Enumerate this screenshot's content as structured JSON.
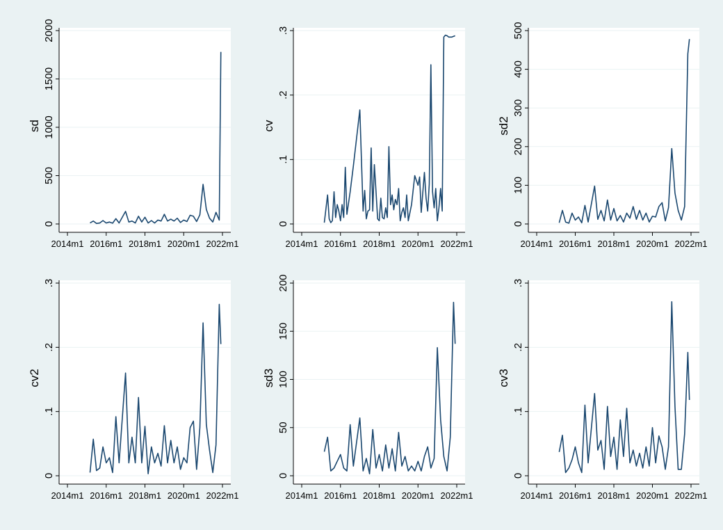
{
  "chart_data": [
    {
      "type": "line",
      "ylabel": "sd",
      "xlabel": "",
      "x_ticks": [
        "2014m1",
        "2016m1",
        "2018m1",
        "2020m1",
        "2022m1"
      ],
      "y_ticks": [
        "0",
        "500",
        "1000",
        "1500",
        "2000"
      ],
      "ylim": [
        0,
        2000
      ],
      "xlim": [
        "2014m1",
        "2022m1"
      ],
      "line_color": "#1a476f",
      "x": [
        "2015m3",
        "2015m5",
        "2015m7",
        "2015m9",
        "2015m11",
        "2016m1",
        "2016m3",
        "2016m5",
        "2016m7",
        "2016m9",
        "2017m1",
        "2017m3",
        "2017m5",
        "2017m7",
        "2017m9",
        "2017m11",
        "2018m1",
        "2018m3",
        "2018m5",
        "2018m7",
        "2018m9",
        "2018m11",
        "2019m1",
        "2019m3",
        "2019m5",
        "2019m7",
        "2019m9",
        "2019m11",
        "2020m1",
        "2020m3",
        "2020m5",
        "2020m7",
        "2020m9",
        "2020m11",
        "2021m1",
        "2021m3",
        "2021m5",
        "2021m7",
        "2021m9",
        "2021m11",
        "2021m12"
      ],
      "values": [
        10,
        30,
        5,
        10,
        35,
        10,
        20,
        8,
        55,
        10,
        130,
        20,
        30,
        10,
        80,
        20,
        70,
        10,
        35,
        10,
        40,
        30,
        100,
        30,
        50,
        30,
        60,
        15,
        40,
        25,
        90,
        80,
        25,
        95,
        410,
        150,
        60,
        20,
        120,
        40,
        1780
      ]
    },
    {
      "type": "line",
      "ylabel": "cv",
      "xlabel": "",
      "x_ticks": [
        "2014m1",
        "2016m1",
        "2018m1",
        "2020m1",
        "2022m1"
      ],
      "y_ticks": [
        "0",
        ".1",
        ".2",
        ".3"
      ],
      "ylim": [
        0,
        0.3
      ],
      "xlim": [
        "2014m1",
        "2022m1"
      ],
      "line_color": "#1a476f",
      "x": [
        "2015m3",
        "2015m5",
        "2015m6",
        "2015m7",
        "2015m8",
        "2015m9",
        "2015m10",
        "2015m11",
        "2015m12",
        "2016m1",
        "2016m2",
        "2016m3",
        "2016m4",
        "2016m5",
        "2016m7",
        "2016m9",
        "2017m1",
        "2017m3",
        "2017m4",
        "2017m5",
        "2017m6",
        "2017m7",
        "2017m8",
        "2017m9",
        "2017m10",
        "2017m11",
        "2017m12",
        "2018m1",
        "2018m2",
        "2018m3",
        "2018m4",
        "2018m5",
        "2018m6",
        "2018m7",
        "2018m8",
        "2018m9",
        "2018m10",
        "2018m11",
        "2018m12",
        "2019m1",
        "2019m2",
        "2019m3",
        "2019m4",
        "2019m5",
        "2019m6",
        "2019m7",
        "2019m9",
        "2019m11",
        "2020m1",
        "2020m2",
        "2020m3",
        "2020m5",
        "2020m6",
        "2020m7",
        "2020m8",
        "2020m9",
        "2020m10",
        "2020m11",
        "2020m12",
        "2021m1",
        "2021m2",
        "2021m3",
        "2021m4",
        "2021m5",
        "2021m6",
        "2021m7",
        "2021m8",
        "2021m9",
        "2021m10",
        "2021m11",
        "2021m12"
      ],
      "values": [
        0.002,
        0.045,
        0.008,
        0.002,
        0.005,
        0.05,
        0.01,
        0.03,
        0.02,
        0.005,
        0.03,
        0.01,
        0.088,
        0.015,
        0.05,
        0.09,
        0.177,
        0.02,
        0.052,
        0.008,
        0.02,
        0.022,
        0.118,
        0.02,
        0.092,
        0.05,
        0.008,
        0.005,
        0.04,
        0.01,
        0.008,
        0.025,
        0.01,
        0.12,
        0.03,
        0.045,
        0.022,
        0.038,
        0.03,
        0.055,
        0.005,
        0.018,
        0.025,
        0.01,
        0.045,
        0.005,
        0.03,
        0.075,
        0.06,
        0.073,
        0.018,
        0.08,
        0.04,
        0.02,
        0.062,
        0.247,
        0.05,
        0.025,
        0.055,
        0.005,
        0.025,
        0.055,
        0.02,
        0.29,
        0.293,
        0.292,
        0.29,
        0.29,
        0.29,
        0.291,
        0.292
      ]
    },
    {
      "type": "line",
      "ylabel": "sd2",
      "xlabel": "",
      "x_ticks": [
        "2014m1",
        "2016m1",
        "2018m1",
        "2020m1",
        "2022m1"
      ],
      "y_ticks": [
        "0",
        "100",
        "200",
        "300",
        "400",
        "500"
      ],
      "ylim": [
        0,
        500
      ],
      "xlim": [
        "2014m1",
        "2022m1"
      ],
      "line_color": "#1a476f",
      "x": [
        "2015m3",
        "2015m5",
        "2015m7",
        "2015m9",
        "2015m11",
        "2016m1",
        "2016m3",
        "2016m5",
        "2016m7",
        "2016m9",
        "2017m1",
        "2017m3",
        "2017m5",
        "2017m7",
        "2017m9",
        "2017m11",
        "2018m1",
        "2018m3",
        "2018m5",
        "2018m7",
        "2018m9",
        "2018m11",
        "2019m1",
        "2019m3",
        "2019m5",
        "2019m7",
        "2019m9",
        "2019m11",
        "2020m1",
        "2020m3",
        "2020m5",
        "2020m7",
        "2020m9",
        "2020m11",
        "2021m1",
        "2021m3",
        "2021m5",
        "2021m7",
        "2021m9",
        "2021m11",
        "2021m12"
      ],
      "values": [
        3,
        35,
        5,
        2,
        28,
        10,
        18,
        3,
        48,
        5,
        98,
        12,
        35,
        8,
        62,
        10,
        40,
        8,
        22,
        5,
        28,
        15,
        45,
        12,
        35,
        10,
        28,
        5,
        20,
        18,
        45,
        55,
        8,
        42,
        195,
        80,
        35,
        10,
        45,
        440,
        478
      ]
    },
    {
      "type": "line",
      "ylabel": "cv2",
      "xlabel": "",
      "x_ticks": [
        "2014m1",
        "2016m1",
        "2018m1",
        "2020m1",
        "2022m1"
      ],
      "y_ticks": [
        "0",
        ".1",
        ".2",
        ".3"
      ],
      "ylim": [
        0,
        0.3
      ],
      "xlim": [
        "2014m1",
        "2022m1"
      ],
      "line_color": "#1a476f",
      "x": [
        "2015m3",
        "2015m5",
        "2015m7",
        "2015m9",
        "2015m11",
        "2016m1",
        "2016m3",
        "2016m5",
        "2016m7",
        "2016m9",
        "2017m1",
        "2017m3",
        "2017m5",
        "2017m7",
        "2017m9",
        "2017m11",
        "2018m1",
        "2018m3",
        "2018m5",
        "2018m7",
        "2018m9",
        "2018m11",
        "2019m1",
        "2019m3",
        "2019m5",
        "2019m7",
        "2019m9",
        "2019m11",
        "2020m1",
        "2020m3",
        "2020m5",
        "2020m7",
        "2020m9",
        "2020m11",
        "2021m1",
        "2021m3",
        "2021m5",
        "2021m7",
        "2021m9",
        "2021m11",
        "2021m12"
      ],
      "values": [
        0.005,
        0.057,
        0.008,
        0.012,
        0.045,
        0.02,
        0.028,
        0.005,
        0.092,
        0.02,
        0.16,
        0.02,
        0.06,
        0.02,
        0.122,
        0.02,
        0.077,
        0.003,
        0.045,
        0.02,
        0.035,
        0.015,
        0.078,
        0.02,
        0.055,
        0.02,
        0.045,
        0.01,
        0.028,
        0.02,
        0.075,
        0.085,
        0.01,
        0.075,
        0.238,
        0.08,
        0.04,
        0.005,
        0.048,
        0.267,
        0.205
      ]
    },
    {
      "type": "line",
      "ylabel": "sd3",
      "xlabel": "",
      "x_ticks": [
        "2014m1",
        "2016m1",
        "2018m1",
        "2020m1",
        "2022m1"
      ],
      "y_ticks": [
        "0",
        "50",
        "100",
        "150",
        "200"
      ],
      "ylim": [
        0,
        200
      ],
      "xlim": [
        "2014m1",
        "2022m1"
      ],
      "line_color": "#1a476f",
      "x": [
        "2015m3",
        "2015m5",
        "2015m7",
        "2015m9",
        "2015m11",
        "2016m1",
        "2016m3",
        "2016m5",
        "2016m7",
        "2016m9",
        "2017m1",
        "2017m3",
        "2017m5",
        "2017m7",
        "2017m9",
        "2017m11",
        "2018m1",
        "2018m3",
        "2018m5",
        "2018m7",
        "2018m9",
        "2018m11",
        "2019m1",
        "2019m3",
        "2019m5",
        "2019m7",
        "2019m9",
        "2019m11",
        "2020m1",
        "2020m3",
        "2020m5",
        "2020m7",
        "2020m9",
        "2020m11",
        "2021m1",
        "2021m3",
        "2021m5",
        "2021m7",
        "2021m9",
        "2021m11",
        "2021m12"
      ],
      "values": [
        25,
        40,
        5,
        8,
        15,
        22,
        8,
        5,
        53,
        10,
        60,
        5,
        18,
        2,
        48,
        8,
        22,
        5,
        32,
        8,
        28,
        5,
        45,
        10,
        20,
        5,
        10,
        5,
        15,
        5,
        20,
        30,
        8,
        18,
        133,
        58,
        20,
        5,
        40,
        180,
        137
      ]
    },
    {
      "type": "line",
      "ylabel": "cv3",
      "xlabel": "",
      "x_ticks": [
        "2014m1",
        "2016m1",
        "2018m1",
        "2020m1",
        "2022m1"
      ],
      "y_ticks": [
        "0",
        ".1",
        ".2",
        ".3"
      ],
      "ylim": [
        0,
        0.3
      ],
      "xlim": [
        "2014m1",
        "2022m1"
      ],
      "line_color": "#1a476f",
      "x": [
        "2015m3",
        "2015m5",
        "2015m7",
        "2015m9",
        "2015m11",
        "2016m1",
        "2016m3",
        "2016m5",
        "2016m7",
        "2016m9",
        "2017m1",
        "2017m3",
        "2017m5",
        "2017m7",
        "2017m9",
        "2017m11",
        "2018m1",
        "2018m3",
        "2018m5",
        "2018m7",
        "2018m9",
        "2018m11",
        "2019m1",
        "2019m3",
        "2019m5",
        "2019m7",
        "2019m9",
        "2019m11",
        "2020m1",
        "2020m3",
        "2020m5",
        "2020m7",
        "2020m9",
        "2020m11",
        "2021m1",
        "2021m3",
        "2021m5",
        "2021m7",
        "2021m9",
        "2021m11",
        "2021m12"
      ],
      "values": [
        0.037,
        0.063,
        0.005,
        0.012,
        0.025,
        0.045,
        0.02,
        0.005,
        0.11,
        0.02,
        0.128,
        0.04,
        0.055,
        0.01,
        0.108,
        0.03,
        0.06,
        0.01,
        0.087,
        0.03,
        0.105,
        0.02,
        0.04,
        0.015,
        0.035,
        0.012,
        0.045,
        0.015,
        0.075,
        0.02,
        0.062,
        0.045,
        0.01,
        0.045,
        0.271,
        0.108,
        0.01,
        0.01,
        0.065,
        0.192,
        0.118
      ]
    }
  ]
}
